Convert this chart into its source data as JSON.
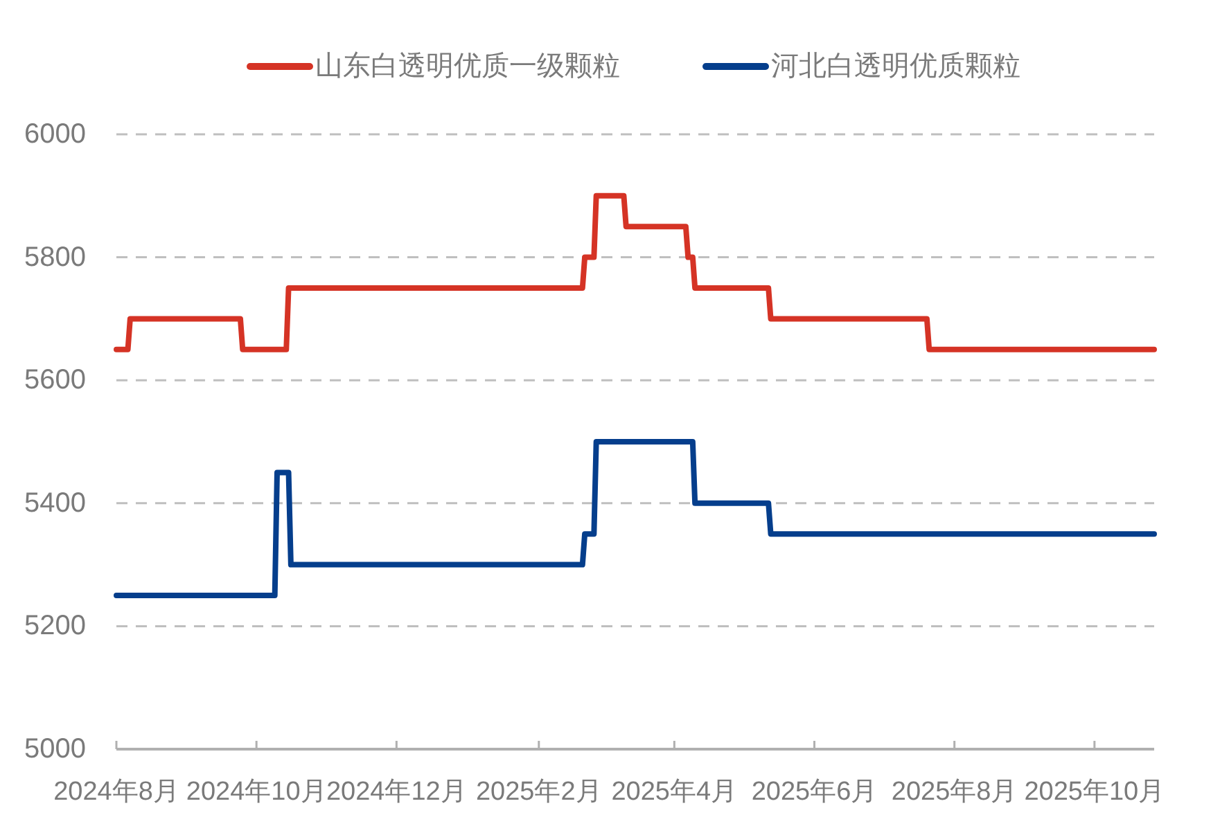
{
  "chart_data": {
    "type": "line",
    "xlim": [
      "2024-08-01",
      "2025-10-27"
    ],
    "xticks": [
      {
        "value": "2024-08",
        "label": "2024年8月"
      },
      {
        "value": "2024-10",
        "label": "2024年10月"
      },
      {
        "value": "2024-12",
        "label": "2024年12月"
      },
      {
        "value": "2025-02",
        "label": "2025年2月"
      },
      {
        "value": "2025-04",
        "label": "2025年4月"
      },
      {
        "value": "2025-06",
        "label": "2025年6月"
      },
      {
        "value": "2025-08",
        "label": "2025年8月"
      },
      {
        "value": "2025-10",
        "label": "2025年10月"
      }
    ],
    "ylim": [
      5000,
      6000
    ],
    "yticks": [
      5000,
      5200,
      5400,
      5600,
      5800,
      6000
    ],
    "grid": "y",
    "legend": "top",
    "series": [
      {
        "name": "山东白透明优质一级颗粒",
        "color": "#d53325",
        "x": [
          "2024-08-01",
          "2024-08-06",
          "2024-08-07",
          "2024-09-24",
          "2024-09-25",
          "2024-10-14",
          "2024-10-15",
          "2025-02-20",
          "2025-02-21",
          "2025-02-25",
          "2025-02-26",
          "2025-03-10",
          "2025-03-11",
          "2025-04-06",
          "2025-04-07",
          "2025-04-09",
          "2025-04-10",
          "2025-05-12",
          "2025-05-13",
          "2025-07-20",
          "2025-07-21",
          "2025-10-27"
        ],
        "values": [
          5650,
          5650,
          5700,
          5700,
          5650,
          5650,
          5750,
          5750,
          5800,
          5800,
          5900,
          5900,
          5850,
          5850,
          5800,
          5800,
          5750,
          5750,
          5700,
          5700,
          5650,
          5650
        ]
      },
      {
        "name": "河北白透明优质颗粒",
        "color": "#053e8c",
        "x": [
          "2024-08-01",
          "2024-10-09",
          "2024-10-10",
          "2024-10-15",
          "2024-10-16",
          "2025-02-20",
          "2025-02-21",
          "2025-02-25",
          "2025-02-26",
          "2025-04-09",
          "2025-04-10",
          "2025-05-12",
          "2025-05-13",
          "2025-10-27"
        ],
        "values": [
          5250,
          5250,
          5450,
          5450,
          5300,
          5300,
          5350,
          5350,
          5500,
          5500,
          5400,
          5400,
          5350,
          5350
        ]
      }
    ]
  }
}
